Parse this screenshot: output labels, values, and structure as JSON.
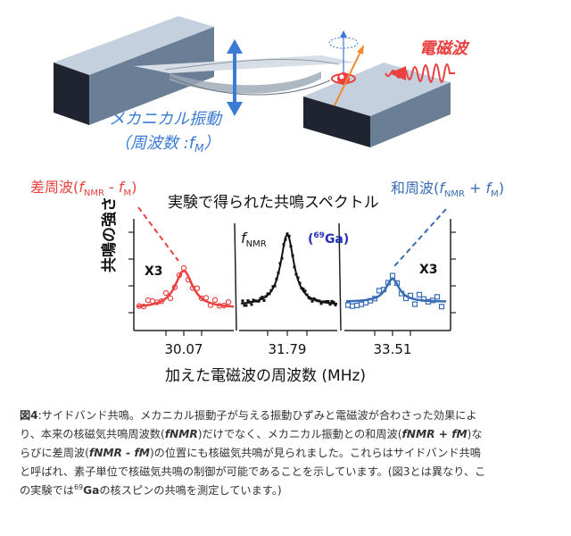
{
  "illustration": {
    "wave_label": "電磁波",
    "mech_label": "メカニカル振動",
    "mech_sub_prefix": "（周波数 :",
    "mech_sub_f": "f",
    "mech_sub_sub": "M",
    "mech_sub_suffix": "）"
  },
  "spectrum": {
    "title": "実験で得られた共鳴スペクトル",
    "ylabel": "共鳴の強さ",
    "xlabel": "加えた電磁波の周波数 (MHz)",
    "diff_label": {
      "prefix": "差周波(",
      "f1": "f",
      "s1": "NMR",
      "op": " - ",
      "f2": "f",
      "s2": "M",
      "suffix": ")"
    },
    "sum_label": {
      "prefix": "和周波(",
      "f1": "f",
      "s1": "NMR",
      "op": " + ",
      "f2": "f",
      "s2": "M",
      "suffix": ")"
    },
    "center_label": {
      "f": "f",
      "sub": "NMR"
    },
    "isotope_label": {
      "open": "(",
      "sup": "69",
      "elem": "Ga",
      "close": ")"
    },
    "x3_left": "X3",
    "x3_right": "X3",
    "ticks": [
      "30.07",
      "31.79",
      "33.51"
    ],
    "colors": {
      "diff": "#e8413f",
      "center": "#111111",
      "sum": "#3a6db5",
      "title_blue": "#3a6db5",
      "wave": "#e8413f",
      "mech": "#3a7bd5"
    }
  },
  "chart_data": {
    "type": "scatter",
    "title": "実験で得られた共鳴スペクトル",
    "xlabel": "加えた電磁波の周波数 (MHz)",
    "ylabel": "共鳴の強さ",
    "series": [
      {
        "name": "差周波(fNMR - fM)",
        "peak_x": 30.07,
        "amplitude": 0.45,
        "scale": "X3"
      },
      {
        "name": "fNMR",
        "peak_x": 31.79,
        "amplitude": 1.0
      },
      {
        "name": "和周波(fNMR + fM)",
        "peak_x": 33.51,
        "amplitude": 0.3,
        "scale": "X3"
      }
    ]
  },
  "caption": {
    "fig_no": "図4",
    "l1": ":サイドバンド共鳴。メカニカル振動子が与える振動ひずみと電磁波が合わさった効果によ",
    "l2a": "り、本来の核磁気共鳴周波数(",
    "l2b": "fNMR",
    "l2c": ")だけでなく、メカニカル振動との和周波(",
    "l2d": "fNMR + fM",
    "l2e": ")な",
    "l3a": "らびに差周波(",
    "l3b": "fNMR - fM",
    "l3c": ")の位置にも核磁気共鳴が見られました。これらはサイドバンド共鳴",
    "l4": "と呼ばれ、素子単位で核磁気共鳴の制御が可能であることを示しています。(図3とは異なり、こ",
    "l5a": "の実験では",
    "l5sup": "69",
    "l5b": "Ga",
    "l5c": "の核スピンの共鳴を測定しています。)"
  }
}
